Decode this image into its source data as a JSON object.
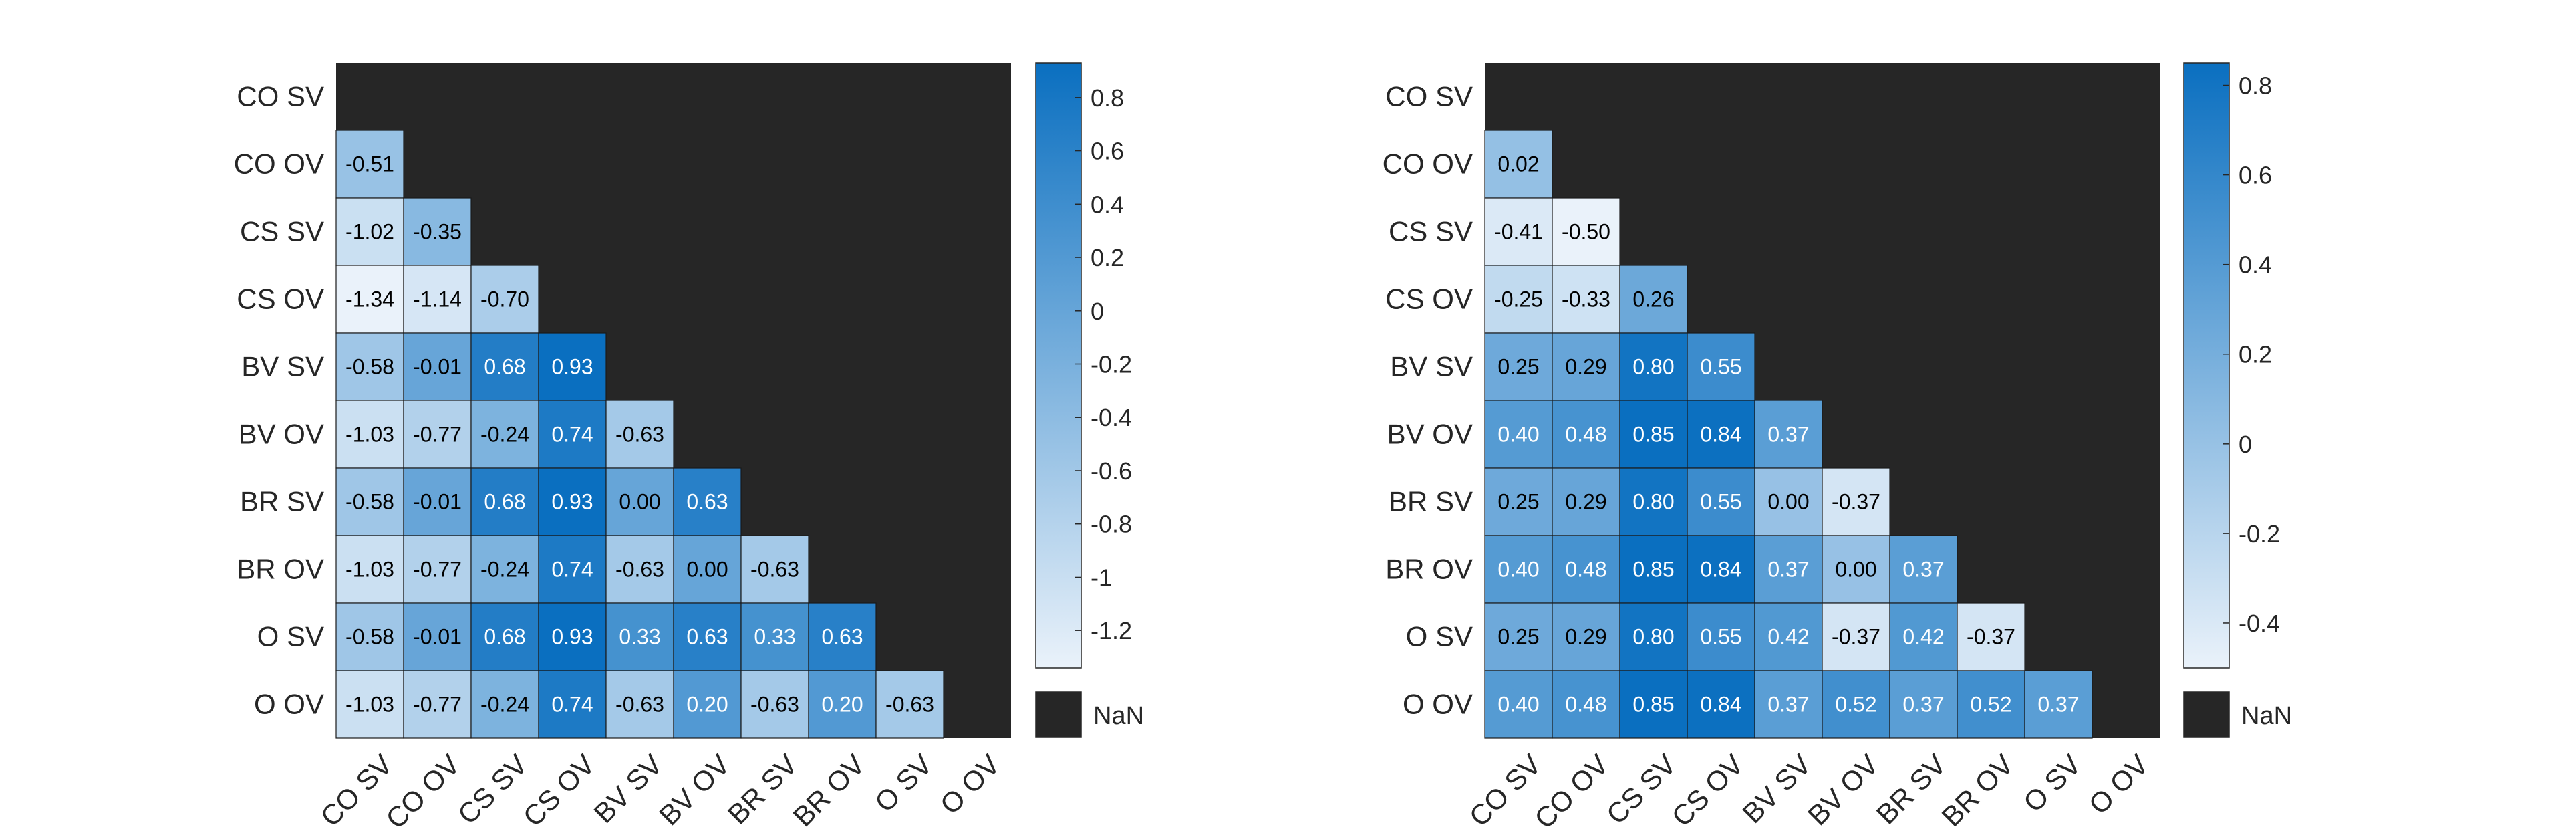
{
  "chart_data": [
    {
      "type": "heatmap",
      "triangle": "lower",
      "labels": [
        "CO SV",
        "CO OV",
        "CS SV",
        "CS OV",
        "BV SV",
        "BV OV",
        "BR SV",
        "BR OV",
        "O SV",
        "O OV"
      ],
      "matrix": [
        [
          null,
          null,
          null,
          null,
          null,
          null,
          null,
          null,
          null,
          null
        ],
        [
          -0.51,
          null,
          null,
          null,
          null,
          null,
          null,
          null,
          null,
          null
        ],
        [
          -1.02,
          -0.35,
          null,
          null,
          null,
          null,
          null,
          null,
          null,
          null
        ],
        [
          -1.34,
          -1.14,
          -0.7,
          null,
          null,
          null,
          null,
          null,
          null,
          null
        ],
        [
          -0.58,
          -0.01,
          0.68,
          0.93,
          null,
          null,
          null,
          null,
          null,
          null
        ],
        [
          -1.03,
          -0.77,
          -0.24,
          0.74,
          -0.63,
          null,
          null,
          null,
          null,
          null
        ],
        [
          -0.58,
          -0.01,
          0.68,
          0.93,
          0.0,
          0.63,
          null,
          null,
          null,
          null
        ],
        [
          -1.03,
          -0.77,
          -0.24,
          0.74,
          -0.63,
          0.0,
          -0.63,
          null,
          null,
          null
        ],
        [
          -0.58,
          -0.01,
          0.68,
          0.93,
          0.33,
          0.63,
          0.33,
          0.63,
          null,
          null
        ],
        [
          -1.03,
          -0.77,
          -0.24,
          0.74,
          -0.63,
          0.2,
          -0.63,
          0.2,
          -0.63,
          null
        ]
      ],
      "colorbar": {
        "range": [
          -1.34,
          0.93
        ],
        "ticks": [
          0.8,
          0.6,
          0.4,
          0.2,
          0,
          -0.2,
          -0.4,
          -0.6,
          -0.8,
          -1,
          -1.2
        ],
        "tick_labels": [
          "0.8",
          "0.6",
          "0.4",
          "0.2",
          "0",
          "-0.2",
          "-0.4",
          "-0.6",
          "-0.8",
          "-1",
          "-1.2"
        ],
        "nan_label": "NaN"
      },
      "colors": {
        "low": "#eaf2fa",
        "high": "#0a6fc0",
        "nan": "#262626",
        "text_dark": "#000000",
        "text_light": "#ffffff"
      }
    },
    {
      "type": "heatmap",
      "triangle": "lower",
      "labels": [
        "CO SV",
        "CO OV",
        "CS SV",
        "CS OV",
        "BV SV",
        "BV OV",
        "BR SV",
        "BR OV",
        "O SV",
        "O OV"
      ],
      "matrix": [
        [
          null,
          null,
          null,
          null,
          null,
          null,
          null,
          null,
          null,
          null
        ],
        [
          0.02,
          null,
          null,
          null,
          null,
          null,
          null,
          null,
          null,
          null
        ],
        [
          -0.41,
          -0.5,
          null,
          null,
          null,
          null,
          null,
          null,
          null,
          null
        ],
        [
          -0.25,
          -0.33,
          0.26,
          null,
          null,
          null,
          null,
          null,
          null,
          null
        ],
        [
          0.25,
          0.29,
          0.8,
          0.55,
          null,
          null,
          null,
          null,
          null,
          null
        ],
        [
          0.4,
          0.48,
          0.85,
          0.84,
          0.37,
          null,
          null,
          null,
          null,
          null
        ],
        [
          0.25,
          0.29,
          0.8,
          0.55,
          0.0,
          -0.37,
          null,
          null,
          null,
          null
        ],
        [
          0.4,
          0.48,
          0.85,
          0.84,
          0.37,
          0.0,
          0.37,
          null,
          null,
          null
        ],
        [
          0.25,
          0.29,
          0.8,
          0.55,
          0.42,
          -0.37,
          0.42,
          -0.37,
          null,
          null
        ],
        [
          0.4,
          0.48,
          0.85,
          0.84,
          0.37,
          0.52,
          0.37,
          0.52,
          0.37,
          null
        ]
      ],
      "colorbar": {
        "range": [
          -0.5,
          0.85
        ],
        "ticks": [
          0.8,
          0.6,
          0.4,
          0.2,
          0,
          -0.2,
          -0.4
        ],
        "tick_labels": [
          "0.8",
          "0.6",
          "0.4",
          "0.2",
          "0",
          "-0.2",
          "-0.4"
        ],
        "nan_label": "NaN"
      },
      "colors": {
        "low": "#eaf2fa",
        "high": "#0a6fc0",
        "nan": "#262626",
        "text_dark": "#000000",
        "text_light": "#ffffff"
      }
    }
  ]
}
